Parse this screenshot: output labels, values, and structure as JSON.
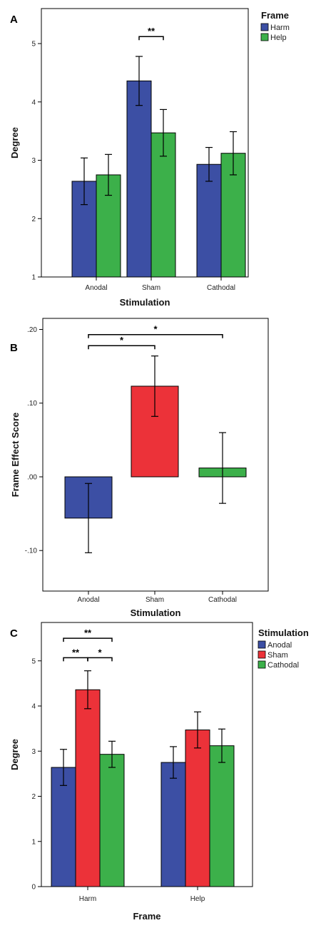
{
  "chart_data": [
    {
      "panel": "A",
      "type": "bar",
      "xlabel": "Stimulation",
      "ylabel": "Degree",
      "ylim": [
        1,
        5.6
      ],
      "yticks": [
        "1",
        "2",
        "3",
        "4",
        "5"
      ],
      "categories": [
        "Anodal",
        "Sham",
        "Cathodal"
      ],
      "legend_title": "Frame",
      "legend_position": "top-right",
      "series": [
        {
          "name": "Harm",
          "color": "#3c4fa4",
          "values": [
            2.64,
            4.36,
            2.93
          ],
          "err_low": [
            2.24,
            3.94,
            2.64
          ],
          "err_high": [
            3.04,
            4.78,
            3.22
          ]
        },
        {
          "name": "Help",
          "color": "#3cb04a",
          "values": [
            2.75,
            3.47,
            3.12
          ],
          "err_low": [
            2.4,
            3.07,
            2.75
          ],
          "err_high": [
            3.1,
            3.87,
            3.49
          ]
        }
      ],
      "significance": [
        {
          "label": "**",
          "from": [
            1,
            0
          ],
          "to": [
            1,
            1
          ],
          "y": 5.12
        }
      ]
    },
    {
      "panel": "B",
      "type": "bar",
      "xlabel": "Stimulation",
      "ylabel": "Frame Effect Score",
      "ylim": [
        -0.155,
        0.215
      ],
      "yticks": [
        "-.10",
        ".00",
        ".10",
        ".20"
      ],
      "categories": [
        "Anodal",
        "Sham",
        "Cathodal"
      ],
      "colors": [
        "#3c4fa4",
        "#ec3239",
        "#3cb04a"
      ],
      "values": [
        -0.056,
        0.123,
        0.012
      ],
      "err_low": [
        -0.103,
        0.082,
        -0.036
      ],
      "err_high": [
        -0.009,
        0.164,
        0.06
      ],
      "significance": [
        {
          "label": "*",
          "from": 0,
          "to": 1,
          "y": 0.178
        },
        {
          "label": "*",
          "from": 0,
          "to": 2,
          "y": 0.193
        }
      ]
    },
    {
      "panel": "C",
      "type": "bar",
      "xlabel": "Frame",
      "ylabel": "Degree",
      "ylim": [
        0,
        5.85
      ],
      "yticks": [
        "0",
        "1",
        "2",
        "3",
        "4",
        "5"
      ],
      "categories": [
        "Harm",
        "Help"
      ],
      "legend_title": "Stimulation",
      "legend_position": "top-right",
      "series": [
        {
          "name": "Anodal",
          "color": "#3c4fa4",
          "values": [
            2.64,
            2.75
          ],
          "err_low": [
            2.24,
            2.4
          ],
          "err_high": [
            3.04,
            3.1
          ]
        },
        {
          "name": "Sham",
          "color": "#ec3239",
          "values": [
            4.36,
            3.47
          ],
          "err_low": [
            3.94,
            3.07
          ],
          "err_high": [
            4.78,
            3.87
          ]
        },
        {
          "name": "Cathodal",
          "color": "#3cb04a",
          "values": [
            2.93,
            3.12
          ],
          "err_low": [
            2.64,
            2.75
          ],
          "err_high": [
            3.22,
            3.49
          ]
        }
      ],
      "significance": [
        {
          "label": "**",
          "from": [
            0,
            0
          ],
          "to": [
            0,
            1
          ],
          "y": 5.07
        },
        {
          "label": "*",
          "from": [
            0,
            1
          ],
          "to": [
            0,
            2
          ],
          "y": 5.07
        },
        {
          "label": "**",
          "from": [
            0,
            0
          ],
          "to": [
            0,
            2
          ],
          "y": 5.5
        }
      ]
    }
  ]
}
